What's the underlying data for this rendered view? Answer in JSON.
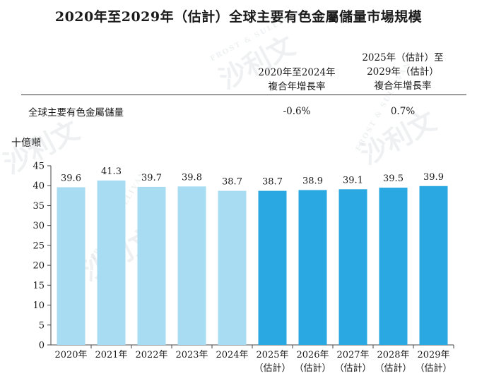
{
  "title": "2020年至2029年（估計）全球主要有色金屬儲量市場規模",
  "cagr_table": {
    "col1_header": [
      "2020年至2024年",
      "複合年增長率"
    ],
    "col2_header": [
      "2025年（估計）至",
      "2029年（估計）",
      "複合年增長率"
    ],
    "row_label": "全球主要有色金屬儲量",
    "col1_value": "-0.6%",
    "col2_value": "0.7%"
  },
  "unit_label": "十億噸",
  "watermark": {
    "brand": "FROST & SULLIVAN",
    "cn": "沙利文"
  },
  "colors": {
    "historical": "#a8dcf2",
    "forecast": "#29a8e2",
    "axis": "#444444"
  },
  "chart_data": {
    "type": "bar",
    "title": "2020年至2029年（估計）全球主要有色金屬儲量市場規模",
    "ylabel": "十億噸",
    "xlabel": "",
    "ylim": [
      0,
      45
    ],
    "yticks": [
      0,
      5,
      10,
      15,
      20,
      25,
      30,
      35,
      40,
      45
    ],
    "categories": [
      "2020年",
      "2021年",
      "2022年",
      "2023年",
      "2024年",
      "2025年",
      "2026年",
      "2027年",
      "2028年",
      "2029年"
    ],
    "category_sublabels": [
      "",
      "",
      "",
      "",
      "",
      "（估計）",
      "（估計）",
      "（估計）",
      "（估計）",
      "（估計）"
    ],
    "values": [
      39.6,
      41.3,
      39.7,
      39.8,
      38.7,
      38.7,
      38.9,
      39.1,
      39.5,
      39.9
    ],
    "value_labels": [
      "39.6",
      "41.3",
      "39.7",
      "39.8",
      "38.7",
      "38.7",
      "38.9",
      "39.1",
      "39.5",
      "39.9"
    ],
    "forecast": [
      false,
      false,
      false,
      false,
      false,
      true,
      true,
      true,
      true,
      true
    ],
    "grid": false
  }
}
